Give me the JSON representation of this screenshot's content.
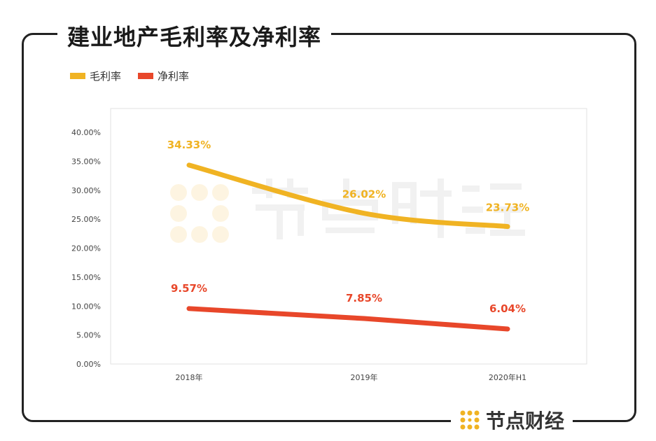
{
  "title": "建业地产毛利率及净利率",
  "brand": "节点财经",
  "watermark": "节点财经",
  "chart_data": {
    "type": "line",
    "title": "建业地产毛利率及净利率",
    "categories": [
      "2018年",
      "2019年",
      "2020年H1"
    ],
    "series": [
      {
        "name": "毛利率",
        "values": [
          34.33,
          26.02,
          23.73
        ],
        "labels": [
          "34.33%",
          "26.02%",
          "23.73%"
        ],
        "color": "#F0B323",
        "smooth": true
      },
      {
        "name": "净利率",
        "values": [
          9.57,
          7.85,
          6.04
        ],
        "labels": [
          "9.57%",
          "7.85%",
          "6.04%"
        ],
        "color": "#E8472A",
        "smooth": false
      }
    ],
    "yticks": [
      "0.00%",
      "5.00%",
      "10.00%",
      "15.00%",
      "20.00%",
      "25.00%",
      "30.00%",
      "35.00%",
      "40.00%"
    ],
    "ylim": [
      0,
      40
    ],
    "legend": "top-left",
    "grid": false
  }
}
